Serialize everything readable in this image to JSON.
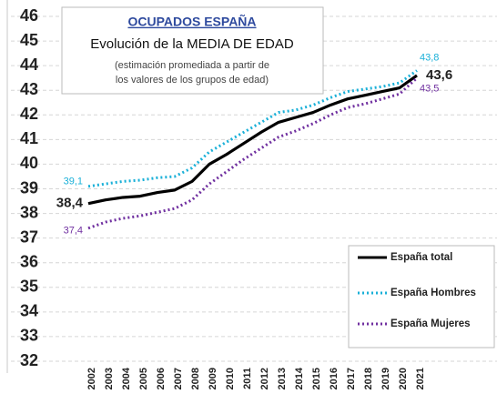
{
  "chart_data": {
    "type": "line",
    "title": "OCUPADOS ESPAÑA",
    "subtitle": "Evolución de la MEDIA DE EDAD",
    "annotations": [
      "(estimación promediada a partir de",
      "los valores de los grupos de edad)"
    ],
    "categories": [
      "2002",
      "2003",
      "2004",
      "2005",
      "2006",
      "2007",
      "2008",
      "2009",
      "2010",
      "2011",
      "2012",
      "2013",
      "2014",
      "2015",
      "2016",
      "2017",
      "2018",
      "2019",
      "2020",
      "2021"
    ],
    "series": [
      {
        "name": "España total",
        "color": "#000000",
        "dash": false,
        "values": [
          38.4,
          38.55,
          38.65,
          38.7,
          38.85,
          38.95,
          39.3,
          40.0,
          40.4,
          40.85,
          41.3,
          41.7,
          41.9,
          42.1,
          42.4,
          42.65,
          42.8,
          42.95,
          43.1,
          43.6
        ],
        "value_labels": [
          "38,4",
          null,
          null,
          null,
          null,
          null,
          null,
          null,
          null,
          null,
          null,
          null,
          null,
          null,
          null,
          null,
          null,
          null,
          null,
          "43,6"
        ]
      },
      {
        "name": "España Hombres",
        "color": "#1ab0d8",
        "dash": true,
        "values": [
          39.1,
          39.2,
          39.3,
          39.35,
          39.45,
          39.5,
          39.85,
          40.5,
          40.9,
          41.3,
          41.7,
          42.1,
          42.2,
          42.4,
          42.7,
          42.95,
          43.05,
          43.15,
          43.3,
          43.8
        ],
        "value_labels": [
          "39,1",
          null,
          null,
          null,
          null,
          null,
          null,
          null,
          null,
          null,
          null,
          null,
          null,
          null,
          null,
          null,
          null,
          null,
          null,
          "43,8"
        ]
      },
      {
        "name": "España Mujeres",
        "color": "#7030a0",
        "dash": true,
        "values": [
          37.4,
          37.65,
          37.8,
          37.9,
          38.05,
          38.2,
          38.55,
          39.2,
          39.7,
          40.2,
          40.65,
          41.1,
          41.35,
          41.65,
          42.0,
          42.3,
          42.45,
          42.65,
          42.85,
          43.5
        ],
        "value_labels": [
          "37,4",
          null,
          null,
          null,
          null,
          null,
          null,
          null,
          null,
          null,
          null,
          null,
          null,
          null,
          null,
          null,
          null,
          null,
          null,
          "43,5"
        ]
      }
    ],
    "ylim": [
      32,
      46
    ],
    "yticks": [
      32,
      33,
      34,
      35,
      36,
      37,
      38,
      39,
      40,
      41,
      42,
      43,
      44,
      45,
      46
    ],
    "grid": true,
    "legend": "bottom-right"
  }
}
